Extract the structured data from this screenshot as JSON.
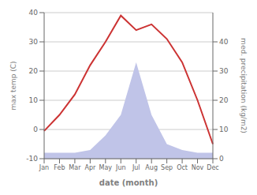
{
  "chart_data": {
    "type": "line",
    "x_label": "date (month)",
    "y_label": "max temp (C)",
    "y2_label": "med. precipitation (kg/m2)",
    "categories": [
      "Jan",
      "Feb",
      "Mar",
      "Apr",
      "May",
      "Jun",
      "Jul",
      "Aug",
      "Sep",
      "Oct",
      "Nov",
      "Dec"
    ],
    "series": [
      {
        "type": "area",
        "color": "#c0c4e8",
        "axis": "y2",
        "values": [
          2,
          2,
          2,
          3,
          8,
          15,
          33,
          15,
          5,
          3,
          2,
          2
        ]
      },
      {
        "type": "line",
        "color": "#cc3333",
        "values": [
          -0.5,
          5,
          12,
          22,
          30,
          39,
          34,
          36,
          31,
          23,
          10,
          -5
        ]
      }
    ],
    "ylim": [
      -10,
      40
    ],
    "yticks": [
      -10,
      0,
      10,
      20,
      30,
      40
    ],
    "y2lim": [
      0,
      50
    ],
    "y2ticks": [
      0,
      10,
      20,
      30,
      40
    ],
    "grid": true
  }
}
